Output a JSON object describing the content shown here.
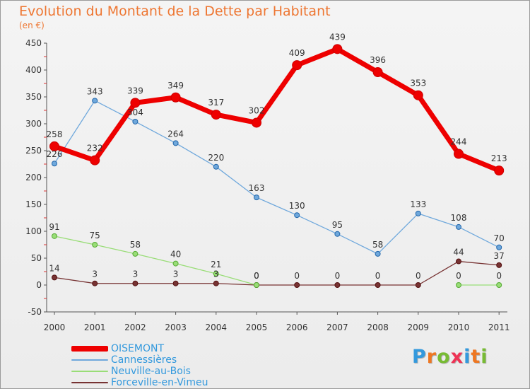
{
  "title": "Evolution du Montant de la Dette par Habitant",
  "unit": "(en €)",
  "brand": "Proxiti",
  "chart_data": {
    "type": "line",
    "x": [
      "2000",
      "2001",
      "2002",
      "2003",
      "2004",
      "2005",
      "2006",
      "2007",
      "2008",
      "2009",
      "2010",
      "2011"
    ],
    "yticks": [
      -50,
      0,
      50,
      100,
      150,
      200,
      250,
      300,
      350,
      400,
      450
    ],
    "ylim": [
      -50,
      450
    ],
    "grid": false,
    "legend": "bottom-left",
    "series": [
      {
        "name": "OISEMONT",
        "values": [
          258,
          232,
          339,
          349,
          317,
          302,
          409,
          439,
          396,
          353,
          244,
          213
        ],
        "color": "#ee0000"
      },
      {
        "name": "Cannessières",
        "values": [
          226,
          343,
          304,
          264,
          220,
          163,
          130,
          95,
          58,
          133,
          108,
          70
        ],
        "color": "#6fa8dc"
      },
      {
        "name": "Neuville-au-Bois",
        "values": [
          91,
          75,
          58,
          40,
          21,
          0,
          null,
          null,
          null,
          null,
          0,
          0
        ],
        "color": "#99dd77"
      },
      {
        "name": "Forceville-en-Vimeu",
        "values": [
          14,
          3,
          3,
          3,
          3,
          0,
          0,
          0,
          0,
          0,
          44,
          37
        ],
        "color": "#773333"
      }
    ]
  }
}
